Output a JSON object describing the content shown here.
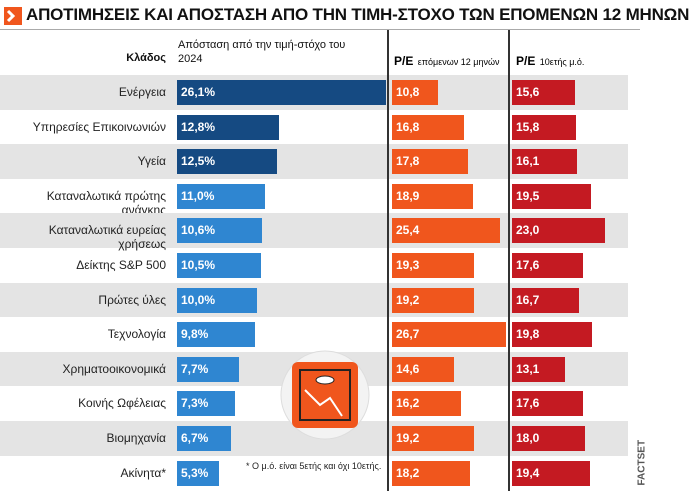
{
  "title": "ΑΠΟΤΙΜΗΣΕΙΣ ΚΑΙ ΑΠΟΣΤΑΣΗ ΑΠΟ ΤΗΝ ΤΙΜΗ-ΣΤΟΧΟ ΤΩΝ ΕΠΟΜΕΝΩΝ 12 ΜΗΝΩΝ",
  "category_header": "Κλάδος",
  "categories": [
    "Ενέργεια",
    "Υπηρεσίες Επικοινωνιών",
    "Υγεία",
    "Καταναλωτικά πρώτης ανάγκης",
    "Καταναλωτικά ευρείας χρήσεως",
    "Δείκτης S&P 500",
    "Πρώτες ύλες",
    "Τεχνολογία",
    "Χρηματοοικονομικά",
    "Κοινής Ωφέλειας",
    "Βιομηχανία",
    "Ακίνητα*"
  ],
  "columns": [
    {
      "header": "Απόσταση από την τιμή-στόχο του 2024",
      "values": [
        26.1,
        12.8,
        12.5,
        11.0,
        10.6,
        10.5,
        10.0,
        9.8,
        7.7,
        7.3,
        6.7,
        5.3
      ],
      "value_labels": [
        "26,1%",
        "12,8%",
        "12,5%",
        "11,0%",
        "10,6%",
        "10,5%",
        "10,0%",
        "9,8%",
        "7,7%",
        "7,3%",
        "6,7%",
        "5,3%"
      ],
      "colors": [
        "#154a82",
        "#154a82",
        "#154a82",
        "#2f86d1",
        "#2f86d1",
        "#2f86d1",
        "#2f86d1",
        "#2f86d1",
        "#2f86d1",
        "#2f86d1",
        "#2f86d1",
        "#2f86d1"
      ]
    },
    {
      "header": "P/E",
      "subheader": "επόμενων 12 μηνών",
      "values": [
        10.8,
        16.8,
        17.8,
        18.9,
        25.4,
        19.3,
        19.2,
        26.7,
        14.6,
        16.2,
        19.2,
        18.2
      ],
      "value_labels": [
        "10,8",
        "16,8",
        "17,8",
        "18,9",
        "25,4",
        "19,3",
        "19,2",
        "26,7",
        "14,6",
        "16,2",
        "19,2",
        "18,2"
      ],
      "color": "#f0561d"
    },
    {
      "header": "P/E",
      "subheader": "10ετής μ.ό.",
      "values": [
        15.6,
        15.8,
        16.1,
        19.5,
        23.0,
        17.6,
        16.7,
        19.8,
        13.1,
        17.6,
        18.0,
        19.4
      ],
      "value_labels": [
        "15,6",
        "15,8",
        "16,1",
        "19,5",
        "23,0",
        "17,6",
        "16,7",
        "19,8",
        "13,1",
        "17,6",
        "18,0",
        "19,4"
      ],
      "color": "#c41a22"
    }
  ],
  "note": "* Ο μ.ό. είναι 5ετής και όχι 10ετής.",
  "source": "FACTSET"
}
